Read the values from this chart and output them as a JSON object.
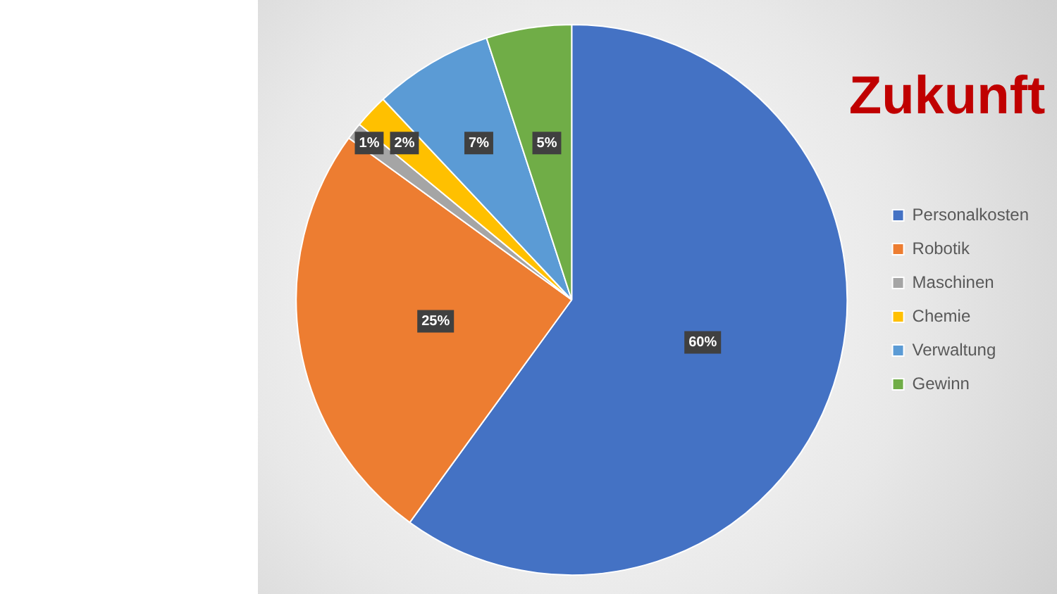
{
  "chart_data": {
    "type": "pie",
    "title": "Zukunft",
    "categories": [
      "Personalkosten",
      "Robotik",
      "Maschinen",
      "Chemie",
      "Verwaltung",
      "Gewinn"
    ],
    "values": [
      60,
      25,
      1,
      2,
      7,
      5
    ],
    "colors": [
      "#4472c4",
      "#ed7d31",
      "#a5a5a5",
      "#ffc000",
      "#5b9bd5",
      "#70ad47"
    ],
    "value_labels": [
      "60%",
      "25%",
      "1%",
      "2%",
      "7%",
      "5%"
    ],
    "legend": "right"
  }
}
